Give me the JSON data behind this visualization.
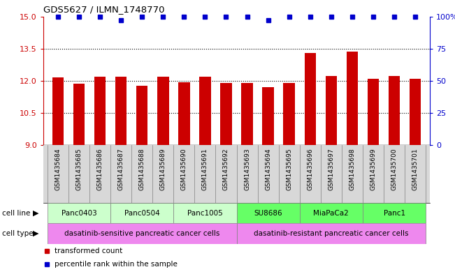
{
  "title": "GDS5627 / ILMN_1748770",
  "samples": [
    "GSM1435684",
    "GSM1435685",
    "GSM1435686",
    "GSM1435687",
    "GSM1435688",
    "GSM1435689",
    "GSM1435690",
    "GSM1435691",
    "GSM1435692",
    "GSM1435693",
    "GSM1435694",
    "GSM1435695",
    "GSM1435696",
    "GSM1435697",
    "GSM1435698",
    "GSM1435699",
    "GSM1435700",
    "GSM1435701"
  ],
  "bar_values": [
    12.15,
    11.88,
    12.2,
    12.2,
    11.77,
    12.2,
    11.93,
    12.2,
    11.9,
    11.9,
    11.72,
    11.9,
    13.3,
    12.23,
    13.35,
    12.1,
    12.22,
    12.1
  ],
  "percentile_values": [
    100,
    100,
    100,
    97,
    100,
    100,
    100,
    100,
    100,
    100,
    97,
    100,
    100,
    100,
    100,
    100,
    100,
    100
  ],
  "ylim_left": [
    9,
    15
  ],
  "ylim_right": [
    0,
    100
  ],
  "yticks_left": [
    9,
    10.5,
    12,
    13.5,
    15
  ],
  "yticks_right": [
    0,
    25,
    50,
    75,
    100
  ],
  "bar_color": "#cc0000",
  "dot_color": "#0000cc",
  "cell_line_groups": [
    {
      "name": "Panc0403",
      "start": 0,
      "end": 2,
      "color": "#ccffcc"
    },
    {
      "name": "Panc0504",
      "start": 3,
      "end": 5,
      "color": "#ccffcc"
    },
    {
      "name": "Panc1005",
      "start": 6,
      "end": 8,
      "color": "#ccffcc"
    },
    {
      "name": "SU8686",
      "start": 9,
      "end": 11,
      "color": "#66ff66"
    },
    {
      "name": "MiaPaCa2",
      "start": 12,
      "end": 14,
      "color": "#66ff66"
    },
    {
      "name": "Panc1",
      "start": 15,
      "end": 17,
      "color": "#66ff66"
    }
  ],
  "cell_type_groups": [
    {
      "name": "dasatinib-sensitive pancreatic cancer cells",
      "start": 0,
      "end": 8,
      "color": "#ee88ee"
    },
    {
      "name": "dasatinib-resistant pancreatic cancer cells",
      "start": 9,
      "end": 17,
      "color": "#ee88ee"
    }
  ],
  "background_color": "#ffffff",
  "tick_bg_color": "#d8d8d8",
  "tick_color_left": "#cc0000",
  "tick_color_right": "#0000cc",
  "grid_dotted_color": "#000000",
  "legend_red_label": "transformed count",
  "legend_blue_label": "percentile rank within the sample"
}
